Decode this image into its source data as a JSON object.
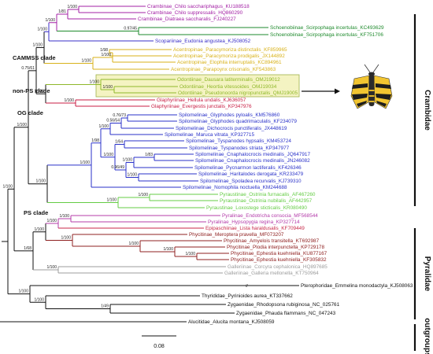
{
  "colors": {
    "crambinae": "#a321a5",
    "schoenobiinae": "#1e8a2c",
    "scopariinae": "#3a2fc8",
    "acentropinae": "#d8b21a",
    "odontiinae": "#8fb82a",
    "odontiinae_box": "#f4f3c2",
    "glaphyriinae": "#c81e43",
    "spilomelinae": "#2a32c9",
    "pyraustinae": "#64cc44",
    "pyralinae": "#b43caa",
    "epipaschiinae": "#c82848",
    "phycitinae": "#8f2020",
    "galleriinae": "#9c9c9c",
    "outgroup": "#111111"
  },
  "taxa": [
    "Crambinae_Chilo sacchariphagus_KU188518",
    "Crambinae_Chilo suppressalis_HQ860290",
    "Crambinae_Diatraea saccharalis_FJ240227",
    "Schoenobiinae_Scirpophaga incertulas_KC493629",
    "Schoenobiinae_Scirpophaga incertulas_KF751706",
    "Scopariinae_Eudonia angustea_KJ508052",
    "Acentropinae_Paracymoriza distinctalis_KF859965",
    "Acentropinae_Paracymoriza prodigalis_JX144892",
    "Acentropinae_Elophila interruptalis_KC894961",
    "Acentropinae_Parapoynx crisonalis_KF543863",
    "Odontiinae_Dausara latiterminalis_OMJ19012",
    "Odontiinae_Heortia vitessoides_OMJ19034",
    "Odontiinae_Pseudonoorda nigropunctalis_QMJ19005",
    "Glaphyriinae_Hellula undalis_KJ636057",
    "Glaphyriinae_Evergestis junctalis_KP347976",
    "Spilomelinae_Glyphodes pyloalis_KM576860",
    "Spilomelinae_Glyphodes quadrimaculalis_KF234079",
    "Spilomelinae_Dichocrocis punctiferalis_JX448619",
    "Spilomelinae_Maruca vitrata_KP327715",
    "Spilomelinae_Tyspanodes hypsalis_KM453724",
    "Spilomelinae_Tyspanodes striata_KP347977",
    "Spilomelinae_Cnaphalocrocis medinalis_JQ647917",
    "Spilomelinae_Cnaphalocrocis medinalis_JN246082",
    "Spilomelinae_Pycnarmon lactiferalis_KF426346",
    "Spilomelinae_Haritalodes derogata_KR233479",
    "Spilomelinae_Spoladea recurvalis_KJ739310",
    "Spilomelinae_Nomophila noctuella_KM244688",
    "Pyraustinae_Ostrinia furnacalis_AF467260",
    "Pyraustinae_Ostrinia nubilalis_AF442957",
    "Pyraustinae_Loxostege sticticalis_KR080490",
    "Pyralinae_Endotricha consocia_MF568544",
    "Pyralinae_Hypsopygia regina_KP327714",
    "Epipaschiinae_Lista haraldusalis_KF709449",
    "Phycitinae_Meroptera pravella_MF073207",
    "Phycitinae_Amyelois transitella_KT692987",
    "Phycitinae_Plodia interpunctella_KP729178",
    "Phycitinae_Ephestia kuehniella_KU877167",
    "Phycitinae_Ephestia kuehniella_KF305832",
    "Galleriinae_Corcyra cephalonica_HQ897685",
    "Galleriinae_Galleria mellonella_KT750964",
    "Pterophoridae_Emmelina monodactyla_KJ508063",
    "Thyrididae_Pyrinioides aurea_KT337662",
    "Zygaenidae_Rhodopsona rubiginosa_NC_025761",
    "Zygaenidae_Phauda flammans_NC_047243",
    "Alucitidae_Alucita montana_KJ508059"
  ],
  "supports": [
    "1/100",
    "1/81",
    "1/100",
    "0.97/45",
    "1/100",
    "1/100",
    "1/98",
    "1/100",
    "1/100",
    "0.75/61",
    "1/100",
    "1/100",
    "1/100",
    "1/100",
    "0.76/73",
    "0.56/54",
    "1/100",
    "1/100",
    "1/98",
    "1/64",
    "1/100",
    "1/83",
    "1/100",
    "1/100",
    "0.96/49",
    "1/100",
    "1/100",
    "1/100",
    "1/100",
    "1/100",
    "1/100",
    "1/100",
    "1/100",
    "1/100",
    "1/100",
    "1/68",
    "1/100",
    "1/100",
    "1/100",
    "1/100",
    "1/100",
    "1/49",
    "1/64",
    "1/100",
    "1/100",
    "1/100",
    "1/100",
    "1/100",
    "1/100",
    "1/69"
  ],
  "clades": {
    "cammss": "CAMMSS clade",
    "non_ps": "non-PS clade",
    "og": "OG clade",
    "ps": "PS clade"
  },
  "families": {
    "crambidae": "Crambidae",
    "pyralidae": "Pyralidae",
    "outgroups": "outgroups"
  },
  "scale_bar": {
    "label": "0.08",
    "value": 0.08
  },
  "branch_break": "//"
}
